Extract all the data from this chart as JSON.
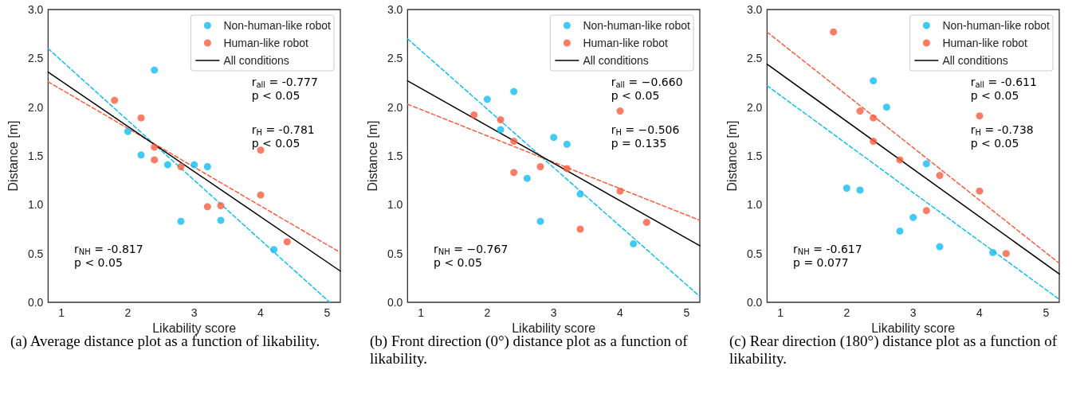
{
  "chart_data": [
    {
      "type": "scatter",
      "title": "(a) Average distance plot as a function of likability.",
      "xlabel": "Likability score",
      "ylabel": "Distance [m]",
      "xlim": [
        0.8,
        5.2
      ],
      "ylim": [
        0,
        3
      ],
      "xticks": [
        1,
        2,
        3,
        4,
        5
      ],
      "yticks": [
        {
          "value": 0,
          "label": "0.0"
        },
        0.5,
        {
          "value": 1,
          "label": "1.0"
        },
        1.5,
        {
          "value": 2,
          "label": "2.0"
        },
        2.5,
        {
          "value": 3,
          "label": "3.0"
        }
      ],
      "grid": false,
      "legend": "top right",
      "annotations": [
        "r$_{all}$ = -0.777\np < 0.05",
        "r$_{H}$ = -0.781\np < 0.05",
        "r$_{NH}$ = -0.817\np < 0.05"
      ],
      "series": [
        {
          "name": "Non-human-like robot",
          "color": "#12bdf5",
          "marker": "circle",
          "x": [
            2.4,
            2.0,
            2.2,
            2.6,
            3.0,
            3.2,
            2.8,
            3.4,
            4.2
          ],
          "values": [
            2.38,
            1.75,
            1.51,
            1.41,
            1.41,
            1.39,
            0.83,
            0.84,
            0.54
          ]
        },
        {
          "name": "Human-like robot",
          "color": "#fb5c40",
          "marker": "circle",
          "x": [
            1.8,
            2.2,
            2.4,
            2.4,
            2.8,
            3.2,
            3.4,
            4.0,
            4.0,
            4.4
          ],
          "values": [
            2.07,
            1.89,
            1.59,
            1.46,
            1.39,
            0.98,
            0.99,
            1.56,
            1.1,
            0.62
          ]
        },
        {
          "type": "line",
          "color": "#12bdf5",
          "marker": "none",
          "line_style": "dashed",
          "x": [
            0.8,
            5.04
          ],
          "values": [
            2.6,
            0
          ]
        },
        {
          "type": "line",
          "color": "#fb5c40",
          "marker": "none",
          "line_style": "dashed",
          "x": [
            0.8,
            5.2
          ],
          "values": [
            2.26,
            0.51
          ]
        },
        {
          "type": "line",
          "name": "All conditions",
          "color": "#000000",
          "marker": "none",
          "line_style": "solid",
          "x": [
            0.8,
            5.2
          ],
          "values": [
            2.36,
            0.32
          ]
        }
      ]
    },
    {
      "type": "scatter",
      "title": "(b) Front direction (0°) distance plot as a function of likability.",
      "xlabel": "Likability score",
      "ylabel": "Distance [m]",
      "xlim": [
        0.8,
        5.2
      ],
      "ylim": [
        0,
        3
      ],
      "xticks": [
        1,
        2,
        3,
        4,
        5
      ],
      "yticks": [
        {
          "value": 0,
          "label": "0.0"
        },
        0.5,
        {
          "value": 1,
          "label": "1.0"
        },
        1.5,
        {
          "value": 2,
          "label": "2.0"
        },
        2.5,
        {
          "value": 3,
          "label": "3.0"
        }
      ],
      "grid": false,
      "legend": "top right",
      "annotations": [
        "r$_{all}$ = −0.660\np < 0.05",
        "r$_{H}$ = −0.506\np = 0.135",
        "r$_{NH}$ = −0.767\np < 0.05"
      ],
      "series": [
        {
          "name": "Non-human-like robot",
          "color": "#12bdf5",
          "marker": "circle",
          "x": [
            2.0,
            2.4,
            2.2,
            3.0,
            3.2,
            2.6,
            3.4,
            2.8,
            4.2
          ],
          "values": [
            2.08,
            2.16,
            1.77,
            1.69,
            1.62,
            1.27,
            1.11,
            0.83,
            0.6
          ]
        },
        {
          "name": "Human-like robot",
          "color": "#fb5c40",
          "marker": "circle",
          "x": [
            1.8,
            2.2,
            2.4,
            2.4,
            2.8,
            3.2,
            4.0,
            4.0,
            3.4,
            4.4
          ],
          "values": [
            1.92,
            1.87,
            1.65,
            1.33,
            1.39,
            1.37,
            1.96,
            1.14,
            0.75,
            0.82
          ]
        },
        {
          "type": "line",
          "color": "#12bdf5",
          "marker": "none",
          "line_style": "dashed",
          "x": [
            0.8,
            5.2
          ],
          "values": [
            2.7,
            0.06
          ]
        },
        {
          "type": "line",
          "color": "#fb5c40",
          "marker": "none",
          "line_style": "dashed",
          "x": [
            0.8,
            5.2
          ],
          "values": [
            2.03,
            0.84
          ]
        },
        {
          "type": "line",
          "name": "All conditions",
          "color": "#000000",
          "marker": "none",
          "line_style": "solid",
          "x": [
            0.8,
            5.2
          ],
          "values": [
            2.27,
            0.58
          ]
        }
      ]
    },
    {
      "type": "scatter",
      "title": "(c) Rear direction (180°) distance plot as a function of likability.",
      "xlabel": "Likability score",
      "ylabel": "Distance [m]",
      "xlim": [
        0.8,
        5.2
      ],
      "ylim": [
        0,
        3
      ],
      "xticks": [
        1,
        2,
        3,
        4,
        5
      ],
      "yticks": [
        {
          "value": 0,
          "label": "0.0"
        },
        0.5,
        {
          "value": 1,
          "label": "1.0"
        },
        1.5,
        {
          "value": 2,
          "label": "2.0"
        },
        2.5,
        {
          "value": 3,
          "label": "3.0"
        }
      ],
      "grid": false,
      "legend": "top right",
      "annotations": [
        "r$_{all}$ = -0.611\np < 0.05",
        "r$_{H}$ = -0.738\np < 0.05",
        "r$_{NH}$ = -0.617\np = 0.077"
      ],
      "series": [
        {
          "name": "Non-human-like robot",
          "color": "#12bdf5",
          "marker": "circle",
          "x": [
            2.4,
            2.6,
            2.0,
            2.2,
            3.2,
            3.0,
            2.8,
            3.4,
            4.2
          ],
          "values": [
            2.27,
            2.0,
            1.17,
            1.15,
            1.42,
            0.87,
            0.73,
            0.57,
            0.51
          ]
        },
        {
          "name": "Human-like robot",
          "color": "#fb5c40",
          "marker": "circle",
          "x": [
            1.8,
            2.2,
            2.4,
            2.4,
            2.8,
            3.4,
            4.0,
            4.0,
            3.2,
            4.4
          ],
          "values": [
            2.77,
            1.96,
            1.89,
            1.65,
            1.46,
            1.3,
            1.91,
            1.14,
            0.94,
            0.5
          ]
        },
        {
          "type": "line",
          "color": "#fb5c40",
          "marker": "none",
          "line_style": "dashed",
          "x": [
            0.8,
            5.2
          ],
          "values": [
            2.77,
            0.4
          ]
        },
        {
          "type": "line",
          "color": "#12bdf5",
          "marker": "none",
          "line_style": "dashed",
          "x": [
            0.8,
            5.2
          ],
          "values": [
            2.22,
            0.03
          ]
        },
        {
          "type": "line",
          "name": "All conditions",
          "color": "#000000",
          "marker": "none",
          "line_style": "solid",
          "x": [
            0.8,
            5.2
          ],
          "values": [
            2.44,
            0.29
          ]
        }
      ]
    }
  ]
}
